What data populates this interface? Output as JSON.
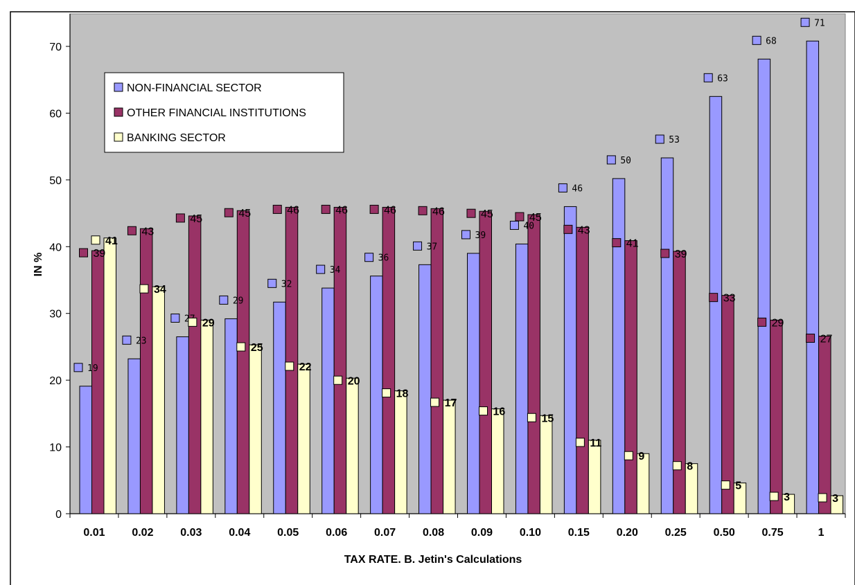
{
  "chart_data": {
    "type": "bar",
    "title": "",
    "xlabel": "TAX RATE. B. Jetin's Calculations",
    "ylabel": "IN %",
    "ylim": [
      0,
      70
    ],
    "yticks": [
      "0",
      "10",
      "20",
      "30",
      "40",
      "50",
      "60",
      "70"
    ],
    "grid": false,
    "legend_position": "top-left",
    "categories": [
      "0.01",
      "0.02",
      "0.03",
      "0.04",
      "0.05",
      "0.06",
      "0.07",
      "0.08",
      "0.09",
      "0.10",
      "0.15",
      "0.20",
      "0.25",
      "0.50",
      "0.75",
      "1"
    ],
    "series": [
      {
        "name": "NON-FINANCIAL SECTOR",
        "color": "#9999ff",
        "values": [
          19.1,
          23.2,
          26.5,
          29.2,
          31.7,
          33.8,
          35.6,
          37.3,
          39.0,
          40.4,
          46.0,
          50.2,
          53.3,
          62.5,
          68.1,
          70.8
        ],
        "labels": [
          "19",
          "23",
          "27",
          "29",
          "32",
          "34",
          "36",
          "37",
          "39",
          "40",
          "46",
          "50",
          "53",
          "63",
          "68",
          "71"
        ]
      },
      {
        "name": "OTHER FINANCIAL INSTITUTIONS",
        "color": "#993366",
        "values": [
          39.4,
          42.7,
          44.6,
          45.4,
          45.9,
          45.9,
          45.9,
          45.7,
          45.3,
          44.8,
          42.9,
          40.9,
          39.3,
          32.7,
          29.0,
          26.6
        ],
        "labels": [
          "39",
          "43",
          "45",
          "45",
          "46",
          "46",
          "46",
          "46",
          "45",
          "45",
          "43",
          "41",
          "39",
          "33",
          "29",
          "27"
        ]
      },
      {
        "name": "BANKING SECTOR",
        "color": "#ffffcc",
        "values": [
          41.3,
          34.0,
          29.0,
          25.3,
          22.4,
          20.3,
          18.4,
          17.0,
          15.7,
          14.7,
          11.0,
          9.0,
          7.5,
          4.6,
          2.9,
          2.7
        ],
        "labels": [
          "41",
          "34",
          "29",
          "25",
          "22",
          "20",
          "18",
          "17",
          "16",
          "15",
          "11",
          "9",
          "8",
          "5",
          "3",
          "3"
        ]
      }
    ]
  },
  "colors": {
    "plot_background": "#c0c0c0",
    "border": "#000000"
  }
}
